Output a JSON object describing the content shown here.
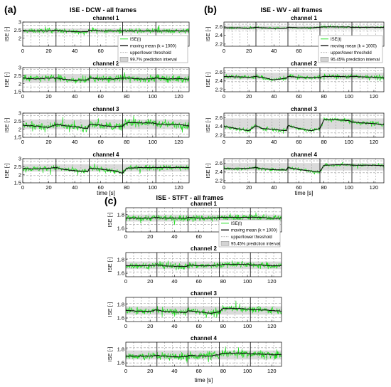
{
  "panels": [
    {
      "id": "a",
      "tag": "(a)",
      "title": "ISE - DCW - all frames",
      "channel_titles": [
        "channel 1",
        "channel 2",
        "channel 3",
        "channel 4"
      ],
      "ylabel": "ISE [-]",
      "xlabel": "time [s]",
      "legend": [
        "ISE(t)",
        "moving mean (k = 1000)",
        "upper/lower threshold",
        "99.7% prediction interval"
      ]
    },
    {
      "id": "b",
      "tag": "(b)",
      "title": "ISE - WV - all frames",
      "channel_titles": [
        "channel 1",
        "channel 2",
        "channel 3",
        "channel 4"
      ],
      "ylabel": "ISE [-]",
      "xlabel": "time [s]",
      "legend": [
        "ISE(t)",
        "moving mean (k = 1000)",
        "upper/lower threshold",
        "95.45% prediction interval"
      ]
    },
    {
      "id": "c",
      "tag": "(c)",
      "title": "ISE - STFT - all frames",
      "channel_titles": [
        "channel 1",
        "channel 2",
        "channel 3",
        "channel 4"
      ],
      "ylabel": "ISE [-]",
      "xlabel": "time [s]",
      "legend": [
        "ISE(t)",
        "moving mean (k = 1000)",
        "upper/lower threshold",
        "95.45% prediction interval"
      ]
    }
  ],
  "colors": {
    "signal": "#22dd22",
    "mean": "#111111",
    "band": "#d3d3d3",
    "threshold": "#999999",
    "frame": "#000000"
  },
  "chart_data": [
    {
      "type": "line",
      "title": "ISE - DCW - all frames",
      "xlabel": "time [s]",
      "ylabel": "ISE [-]",
      "xlim": [
        0,
        128
      ],
      "xticks": [
        0,
        20,
        40,
        60,
        80,
        100,
        120
      ],
      "segment_boundaries": [
        25.6,
        51.2,
        76.8,
        102.4
      ],
      "subplots": [
        {
          "title": "channel 1",
          "ylim": [
            1.5,
            3.0
          ],
          "yticks": [
            2,
            2.5,
            3
          ],
          "mean_x": [
            0,
            10,
            20,
            25.6,
            30,
            40,
            50,
            51.2,
            60,
            70,
            76.8,
            80,
            90,
            100,
            102.4,
            110,
            120,
            128
          ],
          "mean_y": [
            2.45,
            2.45,
            2.45,
            2.5,
            2.45,
            2.4,
            2.4,
            2.5,
            2.45,
            2.45,
            2.45,
            2.45,
            2.45,
            2.45,
            2.45,
            2.45,
            2.45,
            2.45
          ],
          "noise": 0.12,
          "band": [
            2.3,
            2.6
          ],
          "thresholds": [
            2.15,
            2.8
          ]
        },
        {
          "title": "channel 2",
          "ylim": [
            1.5,
            3.0
          ],
          "yticks": [
            1.5,
            2,
            2.5,
            3
          ],
          "mean_x": [
            0,
            10,
            20,
            25.6,
            30,
            40,
            50,
            51.2,
            60,
            70,
            76.8,
            80,
            90,
            100,
            102.4,
            110,
            120,
            128
          ],
          "mean_y": [
            2.35,
            2.3,
            2.35,
            2.35,
            2.3,
            2.2,
            2.25,
            2.35,
            2.3,
            2.3,
            2.35,
            2.35,
            2.3,
            2.3,
            2.35,
            2.3,
            2.3,
            2.3
          ],
          "noise": 0.2,
          "band": [
            2.05,
            2.6
          ],
          "thresholds": [
            1.8,
            2.9
          ]
        },
        {
          "title": "channel 3",
          "ylim": [
            1.5,
            3.0
          ],
          "yticks": [
            1.5,
            2,
            2.5,
            3
          ],
          "mean_x": [
            0,
            10,
            20,
            25.6,
            30,
            40,
            50,
            51.2,
            60,
            70,
            76.8,
            80,
            90,
            100,
            102.4,
            110,
            120,
            128
          ],
          "mean_y": [
            2.25,
            2.2,
            2.1,
            2.3,
            2.25,
            2.15,
            2.05,
            2.3,
            2.25,
            2.15,
            2.2,
            2.4,
            2.4,
            2.4,
            2.35,
            2.3,
            2.3,
            2.2
          ],
          "noise": 0.2,
          "band": [
            2.0,
            2.6
          ],
          "thresholds": [
            1.7,
            2.85
          ]
        },
        {
          "title": "channel 4",
          "ylim": [
            1.5,
            3.0
          ],
          "yticks": [
            1.5,
            2,
            2.5,
            3
          ],
          "mean_x": [
            0,
            10,
            20,
            25.6,
            30,
            40,
            50,
            51.2,
            60,
            70,
            76.8,
            80,
            90,
            100,
            102.4,
            110,
            120,
            128
          ],
          "mean_y": [
            2.4,
            2.35,
            2.4,
            2.45,
            2.35,
            2.25,
            2.2,
            2.4,
            2.35,
            2.25,
            2.1,
            2.4,
            2.45,
            2.45,
            2.45,
            2.45,
            2.45,
            2.45
          ],
          "noise": 0.15,
          "band": [
            2.2,
            2.65
          ],
          "thresholds": [
            1.95,
            2.85
          ]
        }
      ]
    },
    {
      "type": "line",
      "title": "ISE - WV - all frames",
      "xlabel": "time [s]",
      "ylabel": "ISE [-]",
      "xlim": [
        0,
        128
      ],
      "xticks": [
        0,
        20,
        40,
        60,
        80,
        100,
        120
      ],
      "segment_boundaries": [
        25.6,
        51.2,
        76.8,
        102.4
      ],
      "subplots": [
        {
          "title": "channel 1",
          "ylim": [
            2.15,
            2.7
          ],
          "yticks": [
            2.2,
            2.4,
            2.6
          ],
          "mean_x": [
            0,
            10,
            20,
            25.6,
            30,
            40,
            50,
            51.2,
            60,
            70,
            76.8,
            80,
            90,
            100,
            102.4,
            110,
            120,
            128
          ],
          "mean_y": [
            2.57,
            2.57,
            2.56,
            2.58,
            2.57,
            2.56,
            2.56,
            2.58,
            2.57,
            2.57,
            2.58,
            2.59,
            2.59,
            2.59,
            2.58,
            2.58,
            2.58,
            2.58
          ],
          "noise": 0.02,
          "band": [
            2.53,
            2.62
          ],
          "thresholds": [
            2.5,
            2.65
          ]
        },
        {
          "title": "channel 2",
          "ylim": [
            2.15,
            2.7
          ],
          "yticks": [
            2.2,
            2.4,
            2.6
          ],
          "mean_x": [
            0,
            10,
            20,
            25.6,
            30,
            40,
            50,
            51.2,
            60,
            70,
            76.8,
            80,
            90,
            100,
            102.4,
            110,
            120,
            128
          ],
          "mean_y": [
            2.5,
            2.49,
            2.48,
            2.5,
            2.48,
            2.42,
            2.46,
            2.5,
            2.48,
            2.47,
            2.48,
            2.5,
            2.5,
            2.49,
            2.5,
            2.49,
            2.48,
            2.47
          ],
          "noise": 0.04,
          "band": [
            2.43,
            2.58
          ],
          "thresholds": [
            2.38,
            2.63
          ]
        },
        {
          "title": "channel 3",
          "ylim": [
            2.15,
            2.7
          ],
          "yticks": [
            2.2,
            2.4,
            2.6
          ],
          "mean_x": [
            0,
            10,
            20,
            25.6,
            30,
            40,
            50,
            51.2,
            60,
            70,
            76.8,
            80,
            90,
            100,
            102.4,
            110,
            120,
            128
          ],
          "mean_y": [
            2.4,
            2.35,
            2.3,
            2.42,
            2.35,
            2.33,
            2.3,
            2.42,
            2.35,
            2.3,
            2.35,
            2.55,
            2.55,
            2.53,
            2.5,
            2.48,
            2.46,
            2.44
          ],
          "noise": 0.04,
          "band": [
            2.33,
            2.58
          ],
          "thresholds": [
            2.25,
            2.65
          ]
        },
        {
          "title": "channel 4",
          "ylim": [
            2.15,
            2.7
          ],
          "yticks": [
            2.2,
            2.4,
            2.6
          ],
          "mean_x": [
            0,
            10,
            20,
            25.6,
            30,
            40,
            50,
            51.2,
            60,
            70,
            76.8,
            80,
            90,
            100,
            102.4,
            110,
            120,
            128
          ],
          "mean_y": [
            2.48,
            2.47,
            2.48,
            2.5,
            2.47,
            2.45,
            2.44,
            2.5,
            2.45,
            2.42,
            2.4,
            2.55,
            2.56,
            2.56,
            2.55,
            2.55,
            2.55,
            2.54
          ],
          "noise": 0.03,
          "band": [
            2.43,
            2.6
          ],
          "thresholds": [
            2.38,
            2.65
          ]
        }
      ]
    },
    {
      "type": "line",
      "title": "ISE - STFT - all frames",
      "xlabel": "time [s]",
      "ylabel": "ISE [-]",
      "xlim": [
        0,
        128
      ],
      "xticks": [
        0,
        20,
        40,
        60,
        80,
        100,
        120
      ],
      "segment_boundaries": [
        25.6,
        51.2,
        76.8,
        102.4
      ],
      "subplots": [
        {
          "title": "channel 1",
          "ylim": [
            1.55,
            1.9
          ],
          "yticks": [
            1.6,
            1.8
          ],
          "mean_x": [
            0,
            10,
            20,
            25.6,
            30,
            40,
            50,
            51.2,
            60,
            70,
            76.8,
            80,
            90,
            100,
            102.4,
            110,
            120,
            128
          ],
          "mean_y": [
            1.75,
            1.75,
            1.75,
            1.76,
            1.75,
            1.75,
            1.75,
            1.76,
            1.75,
            1.75,
            1.76,
            1.76,
            1.76,
            1.76,
            1.76,
            1.76,
            1.75,
            1.75
          ],
          "noise": 0.04,
          "band": [
            1.7,
            1.8
          ],
          "thresholds": [
            1.66,
            1.84
          ]
        },
        {
          "title": "channel 2",
          "ylim": [
            1.55,
            1.9
          ],
          "yticks": [
            1.6,
            1.8
          ],
          "mean_x": [
            0,
            10,
            20,
            25.6,
            30,
            40,
            50,
            51.2,
            60,
            70,
            76.8,
            80,
            90,
            100,
            102.4,
            110,
            120,
            128
          ],
          "mean_y": [
            1.71,
            1.71,
            1.71,
            1.72,
            1.71,
            1.7,
            1.7,
            1.72,
            1.71,
            1.71,
            1.72,
            1.73,
            1.73,
            1.73,
            1.72,
            1.72,
            1.71,
            1.71
          ],
          "noise": 0.04,
          "band": [
            1.66,
            1.77
          ],
          "thresholds": [
            1.62,
            1.81
          ]
        },
        {
          "title": "channel 3",
          "ylim": [
            1.55,
            1.9
          ],
          "yticks": [
            1.6,
            1.8
          ],
          "mean_x": [
            0,
            10,
            20,
            25.6,
            30,
            40,
            50,
            51.2,
            60,
            70,
            76.8,
            80,
            90,
            100,
            102.4,
            110,
            120,
            128
          ],
          "mean_y": [
            1.71,
            1.7,
            1.7,
            1.72,
            1.7,
            1.69,
            1.68,
            1.71,
            1.69,
            1.67,
            1.69,
            1.74,
            1.74,
            1.73,
            1.72,
            1.72,
            1.71,
            1.7
          ],
          "noise": 0.04,
          "band": [
            1.65,
            1.77
          ],
          "thresholds": [
            1.61,
            1.81
          ]
        },
        {
          "title": "channel 4",
          "ylim": [
            1.55,
            1.9
          ],
          "yticks": [
            1.6,
            1.8
          ],
          "mean_x": [
            0,
            10,
            20,
            25.6,
            30,
            40,
            50,
            51.2,
            60,
            70,
            76.8,
            80,
            90,
            100,
            102.4,
            110,
            120,
            128
          ],
          "mean_y": [
            1.7,
            1.7,
            1.7,
            1.71,
            1.7,
            1.69,
            1.69,
            1.71,
            1.7,
            1.7,
            1.72,
            1.74,
            1.74,
            1.74,
            1.73,
            1.73,
            1.72,
            1.72
          ],
          "noise": 0.05,
          "band": [
            1.65,
            1.78
          ],
          "thresholds": [
            1.6,
            1.82
          ]
        }
      ]
    }
  ]
}
